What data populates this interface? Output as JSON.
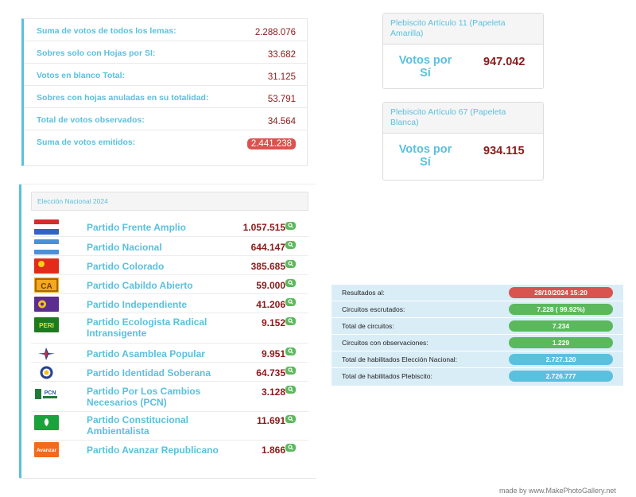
{
  "summary": {
    "rows": [
      {
        "label": "Suma de votos de todos los lemas:",
        "value": "2.288.076"
      },
      {
        "label": "Sobres solo con Hojas por SI:",
        "value": "33.682"
      },
      {
        "label": "Votos en blanco Total:",
        "value": "31.125"
      },
      {
        "label": "Sobres con hojas anuladas en su totalidad:",
        "value": "53.791"
      },
      {
        "label": "Total de votos observados:",
        "value": "34.564"
      },
      {
        "label": "Suma de votos emitidos:",
        "value": "2.441.238"
      }
    ]
  },
  "plebiscites": [
    {
      "title": "Plebiscito Artículo 11 (Papeleta Amarilla)",
      "yes_label": "Votos por Sí",
      "value": "947.042"
    },
    {
      "title": "Plebiscito Artículo 67 (Papeleta Blanca)",
      "yes_label": "Votos por Sí",
      "value": "934.115"
    }
  ],
  "election": {
    "title": "Elección Nacional 2024",
    "parties": [
      {
        "name": "Partido Frente Amplio",
        "votes": "1.057.515",
        "flag": "frente-amplio-flag"
      },
      {
        "name": "Partido Nacional",
        "votes": "644.147",
        "flag": "nacional-flag"
      },
      {
        "name": "Partido Colorado",
        "votes": "385.685",
        "flag": "colorado-flag"
      },
      {
        "name": "Partido Cabildo Abierto",
        "votes": "59.000",
        "flag": "cabildo-abierto-logo",
        "logo_text": "CA"
      },
      {
        "name": "Partido Independiente",
        "votes": "41.206",
        "flag": "independiente-logo"
      },
      {
        "name": "Partido Ecologista Radical Intransigente",
        "votes": "9.152",
        "flag": "peri-logo",
        "logo_text": "PERI"
      },
      {
        "name": "Partido Asamblea Popular",
        "votes": "9.951",
        "flag": "asamblea-popular-logo"
      },
      {
        "name": "Partido Identidad Soberana",
        "votes": "64.735",
        "flag": "identidad-soberana-logo"
      },
      {
        "name": "Partido Por Los Cambios Necesarios (PCN)",
        "votes": "3.128",
        "flag": "pcn-logo",
        "logo_text": "PCN"
      },
      {
        "name": "Partido Constitucional Ambientalista",
        "votes": "11.691",
        "flag": "constitucional-ambientalista-logo"
      },
      {
        "name": "Partido Avanzar Republicano",
        "votes": "1.866",
        "flag": "avanzar-republicano-logo",
        "logo_text": "Avanzar"
      }
    ]
  },
  "results": {
    "rows": [
      {
        "label": "Resultados al:",
        "value": "28/10/2024 15:20",
        "color": "#d9534f"
      },
      {
        "label": "Circuitos escrutados:",
        "value": "7.228 ( 99.92%)",
        "color": "#5cb85c"
      },
      {
        "label": "Total de circuitos:",
        "value": "7.234",
        "color": "#5cb85c"
      },
      {
        "label": "Circuitos con observaciones:",
        "value": "1.229",
        "color": "#5cb85c"
      },
      {
        "label": "Total de habilitados Elección Nacional:",
        "value": "2.727.120",
        "color": "#5bc0de"
      },
      {
        "label": "Total de habilitados Plebiscito:",
        "value": "2.726.777",
        "color": "#5bc0de"
      }
    ]
  },
  "watermark": "made by www.MakePhotoGallery.net",
  "colors": {
    "accent": "#5bc0de",
    "value_red": "#8b1a1a",
    "badge_red": "#d9534f",
    "badge_green": "#5cb85c"
  }
}
